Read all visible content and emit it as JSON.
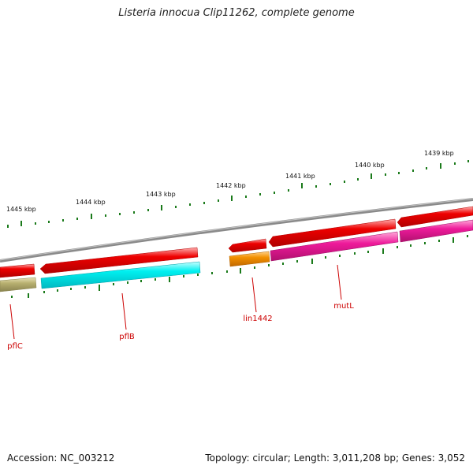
{
  "title": "Listeria innocua Clip11262, complete genome",
  "footer": {
    "accession": "Accession: NC_003212",
    "stats": "Topology: circular; Length: 3,011,208 bp; Genes: 3,052"
  },
  "scale_labels": [
    "1445 kbp",
    "1444 kbp",
    "1443 kbp",
    "1442 kbp",
    "1441 kbp",
    "1440 kbp",
    "1439 kbp"
  ],
  "gene_labels": [
    "pflC",
    "pflB",
    "lin1442",
    "mutL"
  ],
  "colors": {
    "backbone": "#8a8a8a",
    "feature_red": "#ee0000",
    "feature_khaki": "#b8b070",
    "feature_cyan": "#00f0f0",
    "feature_orange": "#f39000",
    "feature_magenta": "#ee1a9a",
    "tick": "#1a7a1a",
    "label_line": "#cc0000",
    "label_text": "#cc0000"
  }
}
